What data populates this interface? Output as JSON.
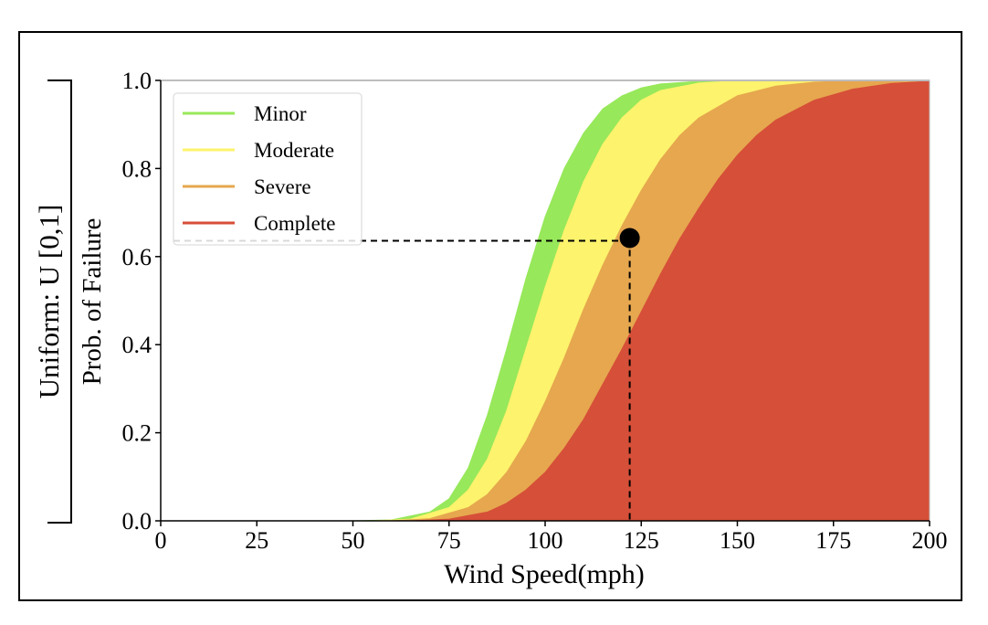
{
  "chart_data": {
    "type": "area",
    "xlabel": "Wind Speed(mph)",
    "ylabel": "Prob. of Failure",
    "outer_label": "Uniform: U [0,1]",
    "xlim": [
      0,
      200
    ],
    "ylim": [
      0,
      1.0
    ],
    "x_ticks": [
      "0",
      "25",
      "50",
      "75",
      "100",
      "125",
      "150",
      "175",
      "200"
    ],
    "y_ticks": [
      "0.0",
      "0.2",
      "0.4",
      "0.6",
      "0.8",
      "1.0"
    ],
    "grid": false,
    "legend_position": "upper-left",
    "series": [
      {
        "name": "Minor",
        "color": "#97e85a",
        "x": [
          0,
          50,
          60,
          70,
          75,
          80,
          85,
          90,
          95,
          100,
          105,
          110,
          115,
          120,
          125,
          130,
          140,
          150,
          200
        ],
        "y": [
          0,
          0,
          0.002,
          0.02,
          0.05,
          0.12,
          0.24,
          0.39,
          0.55,
          0.69,
          0.8,
          0.88,
          0.935,
          0.965,
          0.983,
          0.992,
          0.998,
          1.0,
          1.0
        ]
      },
      {
        "name": "Moderate",
        "color": "#fdf36c",
        "x": [
          0,
          55,
          65,
          75,
          80,
          85,
          90,
          95,
          100,
          105,
          110,
          115,
          120,
          125,
          130,
          140,
          150,
          160,
          200
        ],
        "y": [
          0,
          0,
          0.004,
          0.03,
          0.07,
          0.14,
          0.25,
          0.39,
          0.53,
          0.66,
          0.77,
          0.855,
          0.915,
          0.955,
          0.977,
          0.994,
          0.999,
          1.0,
          1.0
        ]
      },
      {
        "name": "Severe",
        "color": "#e6a74f",
        "x": [
          0,
          60,
          70,
          80,
          85,
          90,
          95,
          100,
          105,
          110,
          115,
          120,
          125,
          130,
          135,
          140,
          150,
          160,
          170,
          185,
          200
        ],
        "y": [
          0,
          0,
          0.005,
          0.03,
          0.06,
          0.11,
          0.18,
          0.27,
          0.37,
          0.48,
          0.58,
          0.67,
          0.75,
          0.82,
          0.875,
          0.915,
          0.965,
          0.987,
          0.996,
          1.0,
          1.0
        ]
      },
      {
        "name": "Complete",
        "color": "#d64f38",
        "x": [
          0,
          65,
          75,
          85,
          90,
          95,
          100,
          105,
          110,
          115,
          120,
          125,
          130,
          135,
          140,
          145,
          150,
          155,
          160,
          170,
          180,
          190,
          200
        ],
        "y": [
          0,
          0,
          0.004,
          0.02,
          0.04,
          0.07,
          0.11,
          0.165,
          0.23,
          0.31,
          0.39,
          0.475,
          0.56,
          0.64,
          0.71,
          0.775,
          0.83,
          0.875,
          0.91,
          0.955,
          0.98,
          0.993,
          0.998
        ]
      }
    ],
    "annotation": {
      "x": 122,
      "y": 0.64,
      "marker": "filled-circle",
      "guides": "dashed"
    }
  }
}
